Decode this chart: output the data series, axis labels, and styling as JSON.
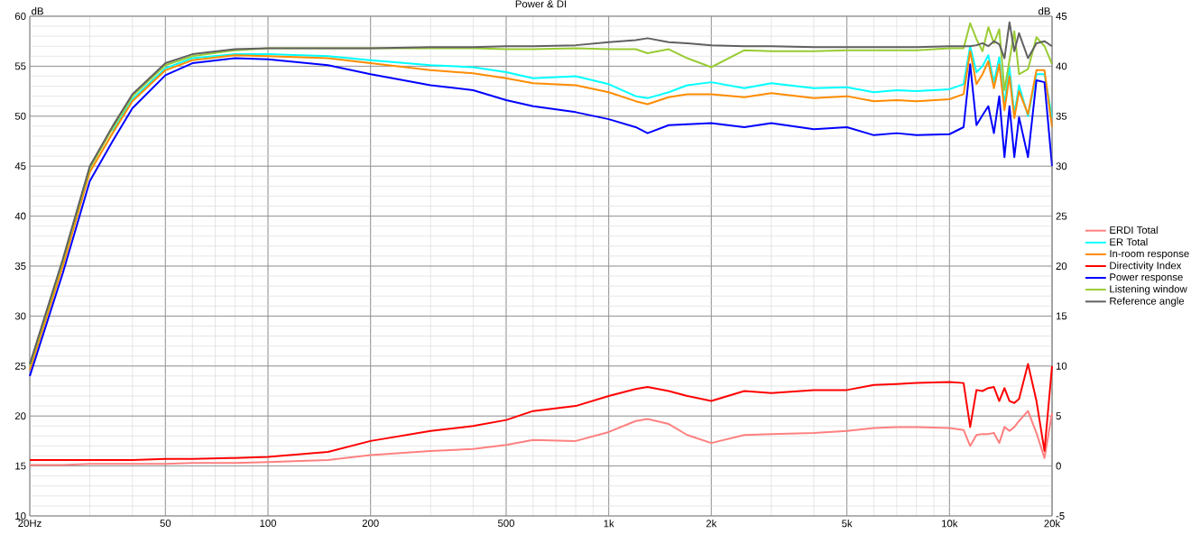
{
  "chart_data": {
    "type": "line",
    "title": "Power & DI",
    "ylabel": "dB",
    "y2label": "dB",
    "log": "x",
    "grid": true,
    "legend": "right",
    "xlim": [
      20,
      20000
    ],
    "xticks": [
      {
        "value": 20,
        "label": "20Hz"
      },
      {
        "value": 50,
        "label": "50"
      },
      {
        "value": 100,
        "label": "100"
      },
      {
        "value": 200,
        "label": "200"
      },
      {
        "value": 500,
        "label": "500"
      },
      {
        "value": 1000,
        "label": "1k"
      },
      {
        "value": 2000,
        "label": "2k"
      },
      {
        "value": 5000,
        "label": "5k"
      },
      {
        "value": 10000,
        "label": "10k"
      },
      {
        "value": 20000,
        "label": "20k"
      }
    ],
    "ylim": [
      10,
      60
    ],
    "yticks": [
      10,
      15,
      20,
      25,
      30,
      35,
      40,
      45,
      50,
      55,
      60
    ],
    "y2lim": [
      -5,
      45
    ],
    "y2ticks": [
      -5,
      0,
      5,
      10,
      15,
      20,
      25,
      30,
      35,
      40,
      45
    ],
    "x": [
      20,
      25,
      30,
      35,
      40,
      50,
      60,
      80,
      100,
      150,
      200,
      300,
      400,
      500,
      600,
      800,
      1000,
      1200,
      1300,
      1500,
      1700,
      2000,
      2500,
      3000,
      4000,
      5000,
      6000,
      7000,
      8000,
      10000,
      11000,
      11500,
      12000,
      12500,
      13000,
      13500,
      14000,
      14500,
      15000,
      15500,
      16000,
      17000,
      18000,
      19000,
      20000
    ],
    "series": [
      {
        "name": "ERDI Total",
        "color": "#ff8080",
        "axis": "y2",
        "values": [
          0.1,
          0.1,
          0.2,
          0.2,
          0.2,
          0.2,
          0.3,
          0.3,
          0.4,
          0.6,
          1.1,
          1.5,
          1.7,
          2.1,
          2.6,
          2.5,
          3.4,
          4.5,
          4.7,
          4.2,
          3.1,
          2.3,
          3.1,
          3.2,
          3.3,
          3.5,
          3.8,
          3.9,
          3.9,
          3.8,
          3.6,
          2.0,
          3.1,
          3.2,
          3.2,
          3.3,
          2.3,
          3.9,
          3.5,
          3.9,
          4.5,
          5.5,
          3.3,
          0.8,
          5.3
        ]
      },
      {
        "name": "ER Total",
        "color": "#00ffff",
        "values": [
          null,
          null,
          null,
          48.5,
          51.7,
          54.8,
          55.8,
          56.2,
          56.2,
          56.0,
          55.6,
          55.1,
          54.9,
          54.4,
          53.8,
          54.0,
          53.2,
          52.0,
          51.8,
          52.4,
          53.1,
          53.4,
          52.8,
          53.3,
          52.8,
          52.9,
          52.4,
          52.6,
          52.5,
          52.7,
          53.2,
          57.0,
          54.4,
          55.0,
          56.1,
          53.4,
          55.9,
          51.2,
          54.9,
          50.2,
          53.1,
          50.0,
          54.2,
          54.2,
          49.9
        ]
      },
      {
        "name": "In-room response",
        "color": "#ff8c00",
        "values": [
          24.6,
          35.0,
          44.4,
          48.3,
          51.5,
          54.6,
          55.6,
          56.1,
          56.0,
          55.8,
          55.3,
          54.6,
          54.3,
          53.8,
          53.3,
          53.1,
          52.4,
          51.5,
          51.2,
          51.9,
          52.2,
          52.2,
          51.9,
          52.3,
          51.8,
          52.0,
          51.5,
          51.6,
          51.5,
          51.7,
          52.2,
          56.5,
          53.2,
          54.2,
          55.5,
          52.8,
          55.2,
          50.6,
          54.0,
          49.8,
          52.5,
          50.2,
          54.6,
          54.6,
          48.9
        ]
      },
      {
        "name": "Directivity Index",
        "color": "#ff0000",
        "axis": "y2",
        "values": [
          0.6,
          0.6,
          0.6,
          0.6,
          0.6,
          0.7,
          0.7,
          0.8,
          0.9,
          1.4,
          2.5,
          3.5,
          4.0,
          4.6,
          5.5,
          6.0,
          7.0,
          7.7,
          7.9,
          7.5,
          7.0,
          6.5,
          7.5,
          7.3,
          7.6,
          7.6,
          8.1,
          8.2,
          8.3,
          8.4,
          8.3,
          3.9,
          7.6,
          7.5,
          7.8,
          7.9,
          6.5,
          7.8,
          6.5,
          6.3,
          6.7,
          10.2,
          6.5,
          1.5,
          10.0
        ]
      },
      {
        "name": "Power response",
        "color": "#0000ff",
        "values": [
          24.0,
          34.3,
          43.5,
          47.5,
          50.8,
          54.1,
          55.3,
          55.8,
          55.7,
          55.1,
          54.2,
          53.1,
          52.6,
          51.6,
          51.0,
          50.4,
          49.7,
          48.9,
          48.3,
          49.1,
          49.2,
          49.3,
          48.9,
          49.3,
          48.7,
          48.9,
          48.1,
          48.3,
          48.1,
          48.2,
          48.9,
          55.2,
          49.1,
          50.1,
          51.0,
          48.3,
          52.0,
          45.9,
          51.0,
          45.9,
          49.9,
          45.9,
          53.6,
          53.4,
          45.0
        ]
      },
      {
        "name": "Listening window",
        "color": "#99cc33",
        "values": [
          25.0,
          35.5,
          44.8,
          48.8,
          52.0,
          55.1,
          56.0,
          56.6,
          56.8,
          56.8,
          56.8,
          56.8,
          56.8,
          56.7,
          56.7,
          56.8,
          56.7,
          56.7,
          56.3,
          56.7,
          55.8,
          54.9,
          56.6,
          56.5,
          56.5,
          56.6,
          56.6,
          56.6,
          56.6,
          56.8,
          56.8,
          59.3,
          57.7,
          56.5,
          58.9,
          57.3,
          58.7,
          52.6,
          55.6,
          58.5,
          54.2,
          54.7,
          57.9,
          57.0,
          55.2
        ]
      },
      {
        "name": "Reference angle",
        "color": "#606060",
        "values": [
          25.2,
          35.7,
          45.0,
          49.0,
          52.2,
          55.3,
          56.2,
          56.7,
          56.8,
          56.8,
          56.8,
          56.9,
          56.9,
          57.0,
          57.0,
          57.1,
          57.4,
          57.6,
          57.8,
          57.4,
          57.3,
          57.1,
          57.0,
          57.0,
          56.9,
          56.9,
          56.9,
          56.9,
          56.9,
          57.0,
          57.0,
          57.0,
          57.1,
          57.3,
          57.0,
          57.5,
          57.2,
          55.8,
          59.4,
          56.5,
          58.3,
          55.8,
          57.3,
          57.5,
          57.0
        ]
      }
    ]
  }
}
